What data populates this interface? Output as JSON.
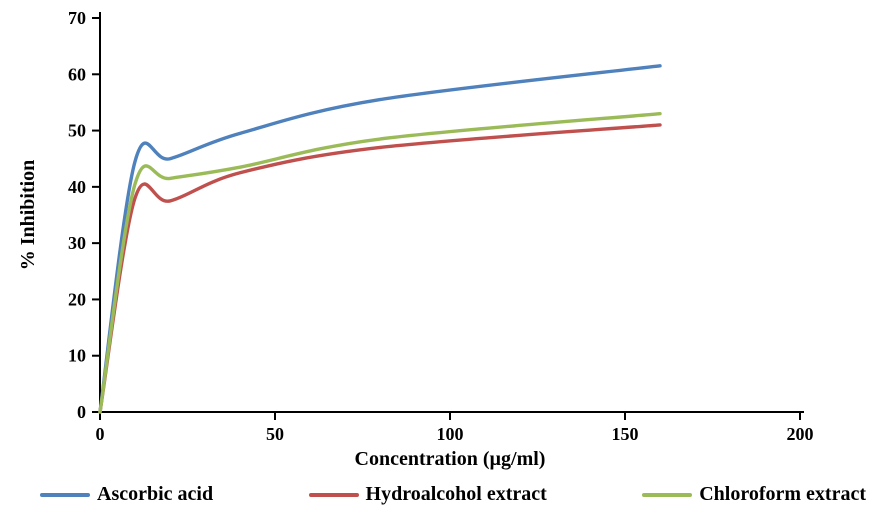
{
  "chart_data": {
    "type": "line",
    "title": "",
    "xlabel": "Concentration (µg/ml)",
    "ylabel": "% Inhibition",
    "xlim": [
      0,
      200
    ],
    "ylim": [
      0,
      70
    ],
    "xticks": [
      0,
      50,
      100,
      150,
      200
    ],
    "yticks": [
      0,
      10,
      20,
      30,
      40,
      50,
      60,
      70
    ],
    "grid": false,
    "legend_position": "bottom",
    "line_style": "smooth",
    "x": [
      0,
      10,
      20,
      40,
      80,
      160
    ],
    "series": [
      {
        "name": "Ascorbic acid",
        "color": "#4F81BD",
        "values": [
          0,
          44.5,
          45.0,
          49.5,
          55.5,
          61.5
        ]
      },
      {
        "name": "Hydroalcohol extract",
        "color": "#C0504D",
        "values": [
          0,
          38.0,
          37.5,
          42.5,
          47.0,
          51.0
        ]
      },
      {
        "name": "Chloroform extract",
        "color": "#9BBB59",
        "values": [
          0,
          40.5,
          41.5,
          43.5,
          48.5,
          53.0
        ]
      }
    ],
    "axis_color": "#000000"
  }
}
